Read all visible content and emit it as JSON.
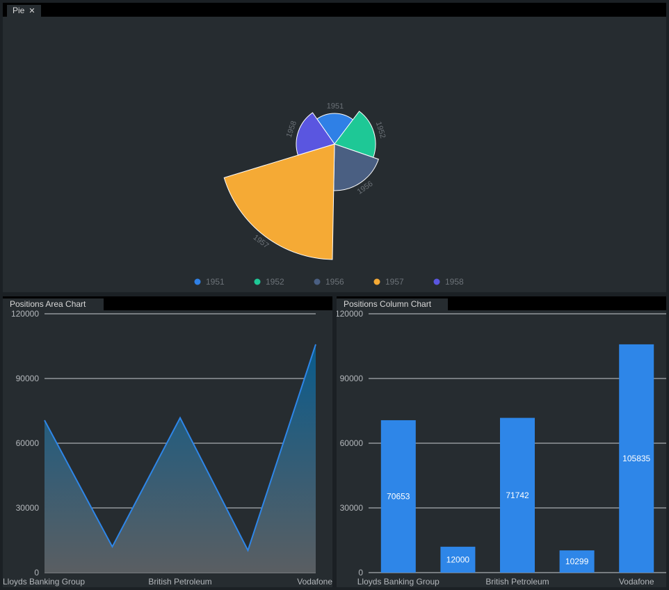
{
  "pie_panel": {
    "tab_label": "Pie",
    "close_icon": "close-icon"
  },
  "area_panel": {
    "tab_label": "Positions Area Chart"
  },
  "column_panel": {
    "tab_label": "Positions Column Chart"
  },
  "colors": {
    "pie": [
      "#2f80e6",
      "#1ec896",
      "#4a5f82",
      "#f5aa35",
      "#5a56e0"
    ],
    "bar": "#2e86e8",
    "line": "#2e86e8"
  },
  "chart_data": [
    {
      "type": "pie",
      "variant": "rose",
      "categories": [
        "1951",
        "1952",
        "1956",
        "1957",
        "1958"
      ],
      "values": [
        44,
        59,
        67,
        166,
        55
      ],
      "legend": [
        "1951",
        "1952",
        "1956",
        "1957",
        "1958"
      ],
      "legend_position": "bottom"
    },
    {
      "type": "area",
      "categories": [
        "Lloyds Banking Group",
        "",
        "British Petroleum",
        "",
        "Vodafone"
      ],
      "values": [
        70653,
        12000,
        71742,
        10299,
        105835
      ],
      "ylim": [
        0,
        120000
      ],
      "yticks": [
        0,
        30000,
        60000,
        90000,
        120000
      ],
      "grid": true
    },
    {
      "type": "bar",
      "categories": [
        "Lloyds Banking Group",
        "",
        "British Petroleum",
        "",
        "Vodafone"
      ],
      "values": [
        70653,
        12000,
        71742,
        10299,
        105835
      ],
      "data_labels": [
        "70653",
        "12000",
        "71742",
        "10299",
        "105835"
      ],
      "ylim": [
        0,
        120000
      ],
      "yticks": [
        0,
        30000,
        60000,
        90000,
        120000
      ],
      "grid": true
    }
  ]
}
